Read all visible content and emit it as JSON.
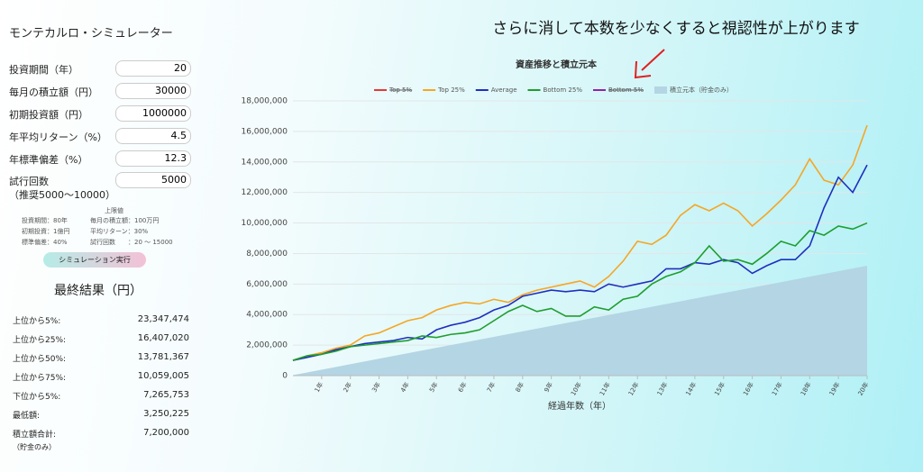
{
  "app_title": "モンテカルロ・シミュレーター",
  "annotation": "さらに消して本数を少なくすると視認性が上がります",
  "form": {
    "fields": [
      {
        "label": "投資期間（年）",
        "value": "20"
      },
      {
        "label": "毎月の積立額（円）",
        "value": "30000"
      },
      {
        "label": "初期投資額（円）",
        "value": "1000000"
      },
      {
        "label": "年平均リターン（%）",
        "value": "4.5"
      },
      {
        "label": "年標準偏差（%）",
        "value": "12.3"
      },
      {
        "label": "試行回数",
        "sublabel": "（推奨5000〜10000）",
        "value": "5000"
      }
    ],
    "limits_title": "上限値",
    "limits": [
      [
        "投資期間：80年",
        "毎月の積立額：100万円"
      ],
      [
        "初期投資：1億円",
        "平均リターン：30%"
      ],
      [
        "標準偏差：40%",
        "試行回数　　：20 〜 15000"
      ]
    ],
    "button": "シミュレーション実行"
  },
  "results": {
    "title": "最終結果（円）",
    "rows": [
      {
        "label": "上位から5%:",
        "value": "23,347,474"
      },
      {
        "label": "上位から25%:",
        "value": "16,407,020"
      },
      {
        "label": "上位から50%:",
        "value": "13,781,367"
      },
      {
        "label": "上位から75%:",
        "value": "10,059,005"
      },
      {
        "label": "下位から5%:",
        "value": "7,265,753"
      },
      {
        "label": "最低額:",
        "value": "3,250,225"
      },
      {
        "label": "積立額合計:",
        "value": "7,200,000",
        "note": "（貯金のみ）"
      }
    ]
  },
  "chart_data": {
    "type": "line",
    "title": "資産推移と積立元本",
    "xlabel": "経過年数（年）",
    "x": [
      0,
      0.5,
      1,
      1.5,
      2,
      2.5,
      3,
      3.5,
      4,
      4.5,
      5,
      5.5,
      6,
      6.5,
      7,
      7.5,
      8,
      8.5,
      9,
      9.5,
      10,
      10.5,
      11,
      11.5,
      12,
      12.5,
      13,
      13.5,
      14,
      14.5,
      15,
      15.5,
      16,
      16.5,
      17,
      17.5,
      18,
      18.5,
      19,
      19.5,
      20
    ],
    "xlim": [
      0,
      20
    ],
    "xticks": [
      {
        "value": 1,
        "label": "1年"
      },
      {
        "value": 2,
        "label": "2年"
      },
      {
        "value": 3,
        "label": "3年"
      },
      {
        "value": 4,
        "label": "4年"
      },
      {
        "value": 5,
        "label": "5年"
      },
      {
        "value": 6,
        "label": "6年"
      },
      {
        "value": 7,
        "label": "7年"
      },
      {
        "value": 8,
        "label": "8年"
      },
      {
        "value": 9,
        "label": "9年"
      },
      {
        "value": 10,
        "label": "10年"
      },
      {
        "value": 11,
        "label": "11年"
      },
      {
        "value": 12,
        "label": "12年"
      },
      {
        "value": 13,
        "label": "13年"
      },
      {
        "value": 14,
        "label": "14年"
      },
      {
        "value": 15,
        "label": "15年"
      },
      {
        "value": 16,
        "label": "16年"
      },
      {
        "value": 17,
        "label": "17年"
      },
      {
        "value": 18,
        "label": "18年"
      },
      {
        "value": 19,
        "label": "19年"
      },
      {
        "value": 20,
        "label": "20年"
      }
    ],
    "ylim": [
      0,
      18000000
    ],
    "yticks": [
      0,
      {
        "value": 2000000,
        "label": "2,000,000"
      },
      {
        "value": 4000000,
        "label": "4,000,000"
      },
      {
        "value": 6000000,
        "label": "6,000,000"
      },
      {
        "value": 8000000,
        "label": "8,000,000"
      },
      {
        "value": 10000000,
        "label": "10,000,000"
      },
      {
        "value": 12000000,
        "label": "12,000,000"
      },
      {
        "value": 14000000,
        "label": "14,000,000"
      },
      {
        "value": 16000000,
        "label": "16,000,000"
      },
      {
        "value": 18000000,
        "label": "18,000,000"
      }
    ],
    "grid": true,
    "legend": "top",
    "series": [
      {
        "name": "Top 5%",
        "color": "#e53935",
        "hidden": true
      },
      {
        "name": "Top 25%",
        "color": "#f5a623",
        "values": [
          1000000,
          1300000,
          1500000,
          1800000,
          2000000,
          2600000,
          2800000,
          3200000,
          3600000,
          3800000,
          4300000,
          4600000,
          4800000,
          4700000,
          5000000,
          4800000,
          5300000,
          5600000,
          5800000,
          6000000,
          6200000,
          5800000,
          6500000,
          7500000,
          8800000,
          8600000,
          9200000,
          10500000,
          11200000,
          10800000,
          11300000,
          10800000,
          9800000,
          10600000,
          11500000,
          12500000,
          14200000,
          12800000,
          12500000,
          13800000,
          16400000
        ]
      },
      {
        "name": "Average",
        "color": "#1f2fbf",
        "values": [
          1000000,
          1200000,
          1400000,
          1700000,
          1900000,
          2100000,
          2200000,
          2300000,
          2500000,
          2400000,
          3000000,
          3300000,
          3500000,
          3800000,
          4300000,
          4600000,
          5200000,
          5400000,
          5600000,
          5500000,
          5600000,
          5500000,
          6000000,
          5800000,
          6000000,
          6200000,
          7000000,
          7000000,
          7400000,
          7300000,
          7600000,
          7400000,
          6700000,
          7200000,
          7600000,
          7600000,
          8500000,
          11000000,
          13000000,
          12000000,
          13800000
        ]
      },
      {
        "name": "Bottom 25%",
        "color": "#1e9e2e",
        "values": [
          1000000,
          1300000,
          1400000,
          1600000,
          1900000,
          2000000,
          2100000,
          2200000,
          2300000,
          2600000,
          2500000,
          2700000,
          2800000,
          3000000,
          3600000,
          4200000,
          4600000,
          4200000,
          4400000,
          3900000,
          3900000,
          4500000,
          4300000,
          5000000,
          5200000,
          6000000,
          6500000,
          6800000,
          7400000,
          8500000,
          7500000,
          7600000,
          7300000,
          8000000,
          8800000,
          8500000,
          9500000,
          9200000,
          9800000,
          9600000,
          10000000
        ]
      },
      {
        "name": "Bottom 5%",
        "color": "#8e24aa",
        "hidden": true
      },
      {
        "name": "積立元本（貯金のみ）",
        "color": "#b3d5e4",
        "kind": "area",
        "x": [
          0,
          20
        ],
        "values": [
          30000,
          7200000
        ]
      }
    ]
  }
}
